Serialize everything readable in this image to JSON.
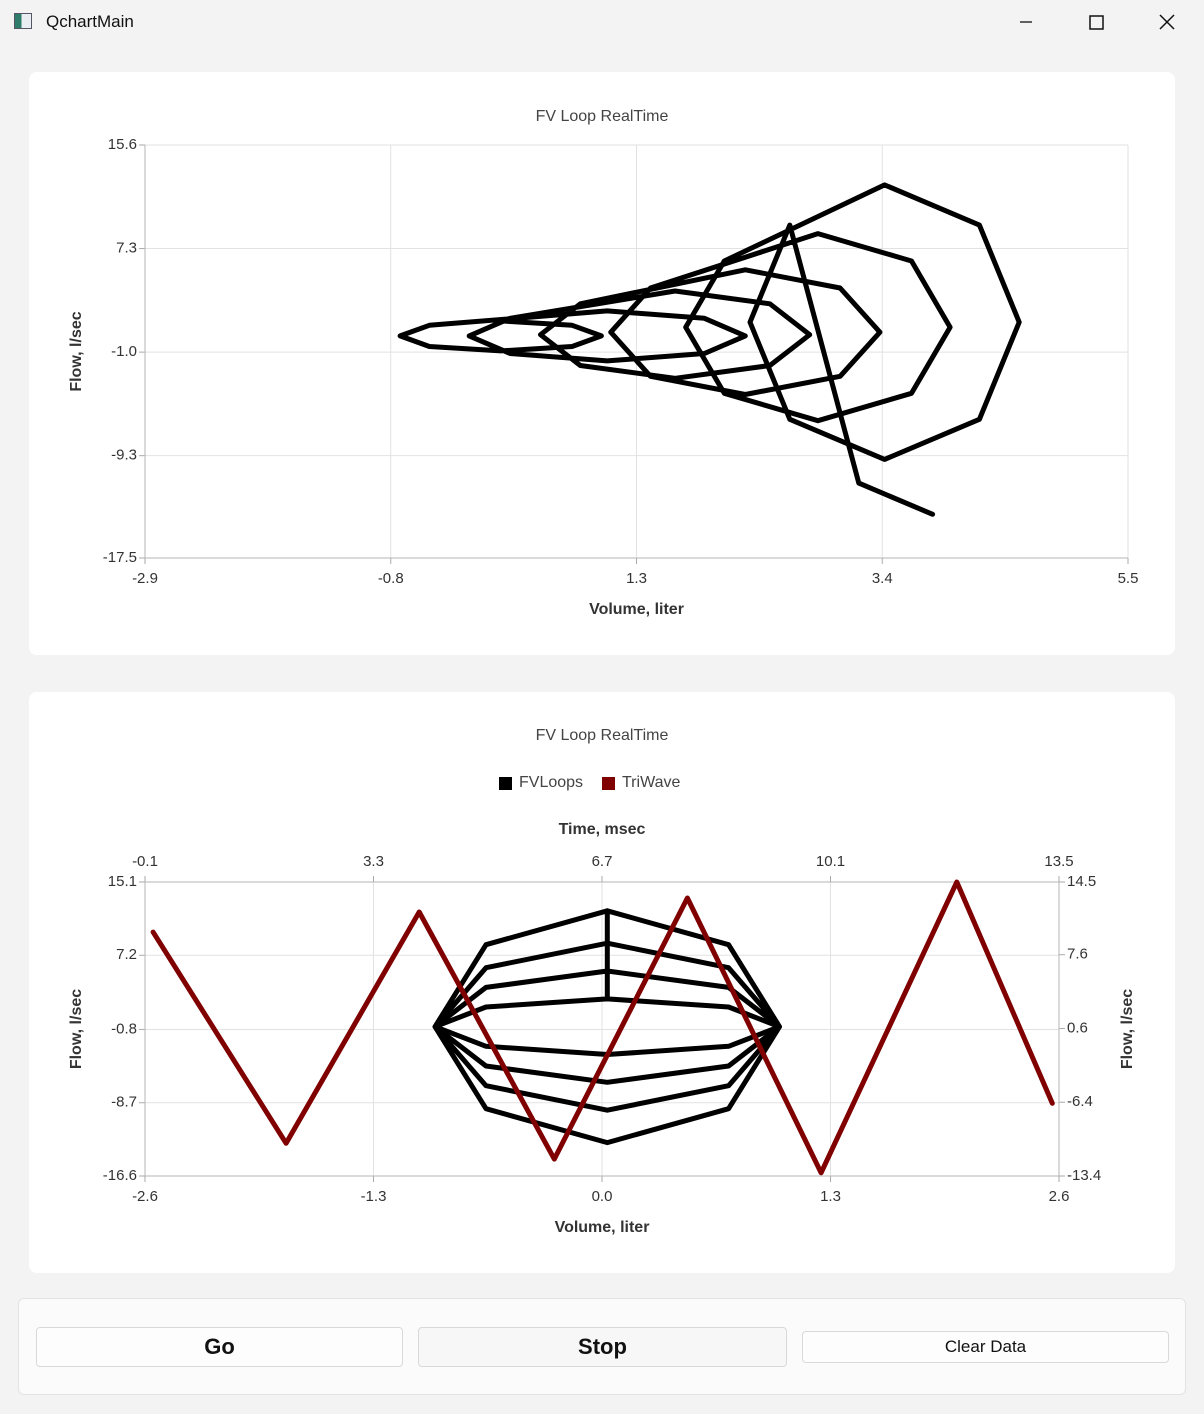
{
  "window": {
    "title": "QchartMain"
  },
  "chart_data": [
    {
      "type": "line",
      "title": "FV Loop RealTime",
      "xlabel": "Volume, liter",
      "ylabel": "Flow, l/sec",
      "xlim": [
        -2.9,
        5.5
      ],
      "xticks": [
        -2.9,
        -0.8,
        1.3,
        3.4,
        5.5
      ],
      "ylim": [
        -17.5,
        15.6
      ],
      "yticks": [
        -17.5,
        -9.3,
        {
          "value": -1,
          "label": "-1.0"
        },
        7.3,
        15.6
      ],
      "grid": true,
      "series": [
        {
          "color": "#000000",
          "x": [
            0.14,
            0.75,
            1.0,
            0.75,
            0.14,
            -0.47,
            -0.72,
            -0.47,
            1.05,
            1.88,
            2.23,
            1.88,
            1.05,
            0.22,
            -0.13,
            0.22,
            1.63,
            2.44,
            2.78,
            2.44,
            1.63,
            0.82,
            0.48,
            0.82,
            2.23,
            3.04,
            3.38,
            3.04,
            2.23,
            1.42,
            1.08,
            1.42,
            2.85,
            3.65,
            3.98,
            3.65,
            2.85,
            2.05,
            1.72,
            2.05,
            3.42,
            4.23,
            4.57,
            4.23,
            3.42,
            2.61,
            2.27,
            2.61,
            3.2,
            3.83
          ],
          "values": [
            1.5,
            1.15,
            0.3,
            -0.55,
            -0.9,
            -0.55,
            0.3,
            1.15,
            2.3,
            1.71,
            0.3,
            -1.11,
            -1.7,
            -1.11,
            0.3,
            1.71,
            3.9,
            2.87,
            0.4,
            -2.07,
            -3.1,
            -2.07,
            0.4,
            2.87,
            5.6,
            4.14,
            0.6,
            -2.94,
            -4.4,
            -2.94,
            0.6,
            4.14,
            8.5,
            6.3,
            1,
            -4.3,
            -6.5,
            -4.3,
            1,
            6.3,
            12.4,
            9.18,
            1.4,
            -6.38,
            -9.6,
            -6.38,
            1.4,
            9.18,
            -11.5,
            -14.0
          ]
        }
      ]
    },
    {
      "type": "line",
      "title": "FV Loop RealTime",
      "xlabel": "Volume, liter",
      "x2label": "Time, msec",
      "ylabel": "Flow, l/sec",
      "y2label": "Flow, l/sec",
      "xlim": [
        -2.6,
        2.6
      ],
      "xticks": [
        -2.6,
        -1.3,
        {
          "value": 0,
          "label": "0.0"
        },
        1.3,
        2.6
      ],
      "x2lim": [
        -0.1,
        13.5
      ],
      "x2ticks": [
        -0.1,
        3.3,
        6.7,
        10.1,
        13.5
      ],
      "ylim": [
        -16.6,
        15.1
      ],
      "yticks": [
        -16.6,
        -8.7,
        -0.8,
        7.2,
        15.1
      ],
      "y2lim": [
        -13.4,
        14.5
      ],
      "y2ticks": [
        -13.4,
        -6.4,
        0.6,
        7.6,
        14.5
      ],
      "grid": true,
      "legend": "top",
      "series": [
        {
          "name": "FVLoops",
          "color": "#000000",
          "x": [
            0.03,
            0.72,
            1.01,
            0.72,
            0.03,
            -0.66,
            -0.95,
            -0.66,
            0.03,
            0.03,
            0.72,
            1.01,
            0.72,
            0.03,
            -0.66,
            -0.95,
            -0.66,
            0.03,
            0.03,
            0.72,
            1.01,
            0.72,
            0.03,
            -0.66,
            -0.95,
            -0.66,
            0.03,
            0.03,
            0.72,
            1.01,
            0.72,
            0.03,
            -0.66,
            -0.95,
            -0.66,
            0.03
          ],
          "values": [
            2.5,
            1.62,
            -0.5,
            -2.62,
            -3.5,
            -2.62,
            -0.5,
            1.62,
            2.5,
            5.5,
            3.74,
            -0.5,
            -4.74,
            -6.5,
            -4.74,
            -0.5,
            3.74,
            5.5,
            8.5,
            5.86,
            -0.5,
            -6.86,
            -9.5,
            -6.86,
            -0.5,
            5.86,
            8.5,
            12,
            8.34,
            -0.5,
            -9.34,
            -13,
            -9.34,
            -0.5,
            8.34,
            12
          ]
        },
        {
          "name": "TriWave",
          "color": "#800000",
          "xaxis": "x2",
          "axis": "y2",
          "x": [
            0.02,
            2.0,
            3.98,
            5.99,
            7.97,
            9.96,
            11.98,
            13.4
          ],
          "values": [
            9.75,
            -10.3,
            11.65,
            -11.8,
            12.98,
            -13.1,
            14.5,
            -6.5
          ]
        }
      ]
    }
  ],
  "buttons": [
    {
      "label": "Go"
    },
    {
      "label": "Stop"
    },
    {
      "label": "Clear Data"
    }
  ]
}
